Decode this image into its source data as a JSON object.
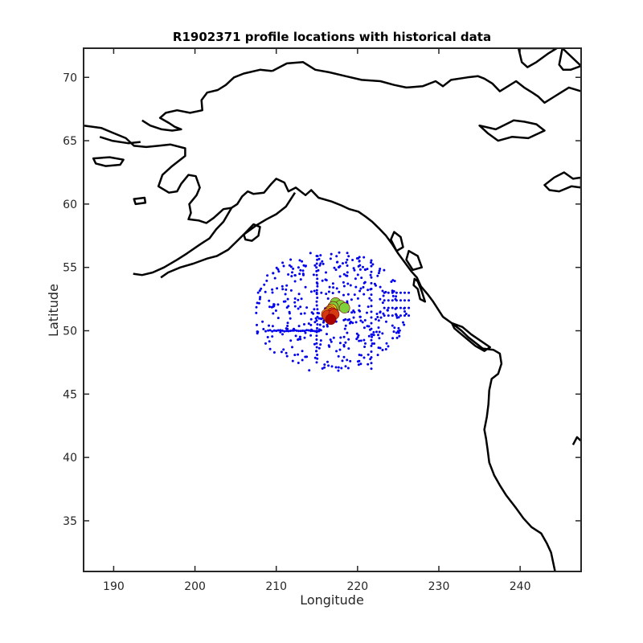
{
  "colors": {
    "coastline": "#000000",
    "historical": "#0000ee",
    "profile_gradient": [
      "#7fd13b",
      "#e8d021",
      "#f08a1c",
      "#d63a12",
      "#a80000"
    ],
    "axis": "#262626"
  },
  "chart_data": {
    "type": "scatter",
    "title": "R1902371 profile locations with historical data",
    "xlabel": "Longitude",
    "ylabel": "Latitude",
    "xlim": [
      186.3,
      247.5
    ],
    "ylim": [
      31.0,
      72.3
    ],
    "xticks": [
      190,
      200,
      210,
      220,
      230,
      240
    ],
    "yticks": [
      35,
      40,
      45,
      50,
      55,
      60,
      65,
      70
    ],
    "grid": false,
    "legend": "none",
    "historical_pattern": {
      "center": [
        216.5,
        51.5
      ],
      "lon_range": [
        207.5,
        226.5
      ],
      "lat_range": [
        46.8,
        56.5
      ],
      "cross_lon": 215.0,
      "cross_lat": 50.0,
      "point_count": 420
    },
    "profiles": [
      {
        "lon": 217.3,
        "lat": 52.2
      },
      {
        "lon": 217.9,
        "lat": 52.0
      },
      {
        "lon": 218.4,
        "lat": 51.8
      },
      {
        "lon": 217.0,
        "lat": 51.9
      },
      {
        "lon": 216.8,
        "lat": 51.7
      },
      {
        "lon": 216.6,
        "lat": 51.6
      },
      {
        "lon": 216.5,
        "lat": 51.5
      },
      {
        "lon": 216.4,
        "lat": 51.4
      },
      {
        "lon": 216.6,
        "lat": 51.2
      },
      {
        "lon": 216.8,
        "lat": 51.1
      },
      {
        "lon": 216.2,
        "lat": 51.3
      },
      {
        "lon": 216.5,
        "lat": 51.0
      },
      {
        "lon": 216.9,
        "lat": 51.4
      },
      {
        "lon": 216.3,
        "lat": 51.2
      },
      {
        "lon": 217.1,
        "lat": 51.3
      },
      {
        "lon": 216.7,
        "lat": 50.9
      }
    ],
    "coastlines": [
      {
        "name": "alaska-yukon-mainland",
        "closed": false,
        "points": [
          [
            186.3,
            66.2
          ],
          [
            188.5,
            66.0
          ],
          [
            190.0,
            65.6
          ],
          [
            191.5,
            65.2
          ],
          [
            192.5,
            64.6
          ],
          [
            194.0,
            64.5
          ],
          [
            195.5,
            64.6
          ],
          [
            197.0,
            64.7
          ],
          [
            198.8,
            64.4
          ],
          [
            198.8,
            63.8
          ],
          [
            197.2,
            63.0
          ],
          [
            196.0,
            62.3
          ],
          [
            195.5,
            61.4
          ],
          [
            196.8,
            60.9
          ],
          [
            197.8,
            61.0
          ],
          [
            198.3,
            61.6
          ],
          [
            199.2,
            62.3
          ],
          [
            200.1,
            62.2
          ],
          [
            200.6,
            61.3
          ],
          [
            200.2,
            60.7
          ],
          [
            199.3,
            60.0
          ],
          [
            199.5,
            59.3
          ],
          [
            199.2,
            58.8
          ],
          [
            200.5,
            58.7
          ],
          [
            201.4,
            58.5
          ],
          [
            202.3,
            58.9
          ],
          [
            203.5,
            59.6
          ],
          [
            204.5,
            59.7
          ],
          [
            205.2,
            60.0
          ],
          [
            205.8,
            60.6
          ],
          [
            206.5,
            61.0
          ],
          [
            207.2,
            60.8
          ],
          [
            208.5,
            60.9
          ],
          [
            209.4,
            61.6
          ],
          [
            210.0,
            62.0
          ],
          [
            211.0,
            61.7
          ],
          [
            211.5,
            61.0
          ],
          [
            212.4,
            61.3
          ],
          [
            213.6,
            60.7
          ],
          [
            214.3,
            61.1
          ],
          [
            215.2,
            60.5
          ],
          [
            216.8,
            60.2
          ],
          [
            218.0,
            59.9
          ],
          [
            219.0,
            59.6
          ],
          [
            220.1,
            59.4
          ],
          [
            221.0,
            59.0
          ],
          [
            221.8,
            58.6
          ],
          [
            222.6,
            58.1
          ],
          [
            223.5,
            57.5
          ],
          [
            224.3,
            56.8
          ],
          [
            225.0,
            56.1
          ],
          [
            225.8,
            55.4
          ],
          [
            226.6,
            54.7
          ],
          [
            227.3,
            54.2
          ],
          [
            227.8,
            53.5
          ],
          [
            228.6,
            52.9
          ],
          [
            229.3,
            52.3
          ],
          [
            230.0,
            51.6
          ],
          [
            230.5,
            51.1
          ],
          [
            231.6,
            50.6
          ],
          [
            232.8,
            50.0
          ],
          [
            233.6,
            49.5
          ],
          [
            235.4,
            48.6
          ],
          [
            236.7,
            48.5
          ],
          [
            237.5,
            48.2
          ],
          [
            237.7,
            47.4
          ],
          [
            237.3,
            46.6
          ],
          [
            236.5,
            46.2
          ],
          [
            236.2,
            45.3
          ],
          [
            236.1,
            44.2
          ],
          [
            235.9,
            43.2
          ],
          [
            235.6,
            42.2
          ],
          [
            235.8,
            41.5
          ],
          [
            236.0,
            40.6
          ],
          [
            236.2,
            39.6
          ],
          [
            236.8,
            38.6
          ],
          [
            237.5,
            37.8
          ],
          [
            238.3,
            37.0
          ],
          [
            239.5,
            36.0
          ],
          [
            240.4,
            35.2
          ],
          [
            241.4,
            34.5
          ],
          [
            242.6,
            34.0
          ],
          [
            243.3,
            33.2
          ],
          [
            243.8,
            32.5
          ],
          [
            244.3,
            31.0
          ]
        ]
      },
      {
        "name": "north-shore",
        "closed": false,
        "points": [
          [
            209.5,
            70.5
          ],
          [
            211.3,
            71.1
          ],
          [
            213.3,
            71.2
          ],
          [
            214.8,
            70.6
          ],
          [
            216.5,
            70.4
          ],
          [
            218.5,
            70.1
          ],
          [
            220.5,
            69.8
          ],
          [
            222.8,
            69.7
          ],
          [
            224.5,
            69.4
          ],
          [
            226.0,
            69.2
          ],
          [
            228.0,
            69.3
          ],
          [
            229.6,
            69.7
          ],
          [
            230.5,
            69.3
          ],
          [
            231.5,
            69.8
          ],
          [
            233.5,
            70.0
          ],
          [
            234.8,
            70.1
          ],
          [
            235.6,
            69.9
          ],
          [
            236.6,
            69.5
          ],
          [
            237.5,
            68.9
          ],
          [
            238.5,
            69.3
          ],
          [
            239.5,
            69.7
          ],
          [
            240.5,
            69.2
          ],
          [
            241.5,
            68.8
          ],
          [
            242.2,
            68.5
          ],
          [
            243.0,
            68.0
          ],
          [
            244.0,
            68.4
          ],
          [
            245.0,
            68.8
          ],
          [
            246.0,
            69.2
          ],
          [
            247.5,
            68.9
          ]
        ]
      },
      {
        "name": "west-alaska-coast",
        "closed": false,
        "points": [
          [
            209.5,
            70.5
          ],
          [
            208.0,
            70.6
          ],
          [
            206.0,
            70.3
          ],
          [
            204.8,
            70.0
          ],
          [
            203.8,
            69.4
          ],
          [
            202.8,
            69.0
          ],
          [
            201.5,
            68.8
          ],
          [
            200.8,
            68.2
          ],
          [
            200.9,
            67.4
          ],
          [
            199.4,
            67.2
          ],
          [
            197.8,
            67.4
          ],
          [
            196.4,
            67.2
          ],
          [
            195.7,
            66.8
          ],
          [
            196.8,
            66.4
          ],
          [
            197.5,
            66.1
          ],
          [
            198.3,
            65.9
          ],
          [
            197.2,
            65.8
          ],
          [
            195.9,
            65.9
          ],
          [
            194.5,
            66.2
          ],
          [
            193.5,
            66.6
          ]
        ]
      },
      {
        "name": "alaska-peninsula",
        "closed": false,
        "points": [
          [
            204.5,
            59.7
          ],
          [
            203.5,
            58.6
          ],
          [
            202.6,
            58.0
          ],
          [
            201.8,
            57.3
          ],
          [
            200.6,
            56.8
          ],
          [
            199.0,
            56.1
          ],
          [
            197.8,
            55.6
          ],
          [
            196.2,
            55.0
          ],
          [
            194.8,
            54.6
          ],
          [
            193.5,
            54.4
          ],
          [
            192.4,
            54.5
          ]
        ]
      },
      {
        "name": "south-peninsula",
        "closed": false,
        "points": [
          [
            212.3,
            60.9
          ],
          [
            211.2,
            59.8
          ],
          [
            210.0,
            59.2
          ],
          [
            208.8,
            58.8
          ],
          [
            207.5,
            58.3
          ],
          [
            206.0,
            57.6
          ],
          [
            205.2,
            57.1
          ],
          [
            204.1,
            56.4
          ],
          [
            202.7,
            55.9
          ],
          [
            201.5,
            55.7
          ],
          [
            199.8,
            55.3
          ],
          [
            198.2,
            55.0
          ],
          [
            196.7,
            54.6
          ],
          [
            195.8,
            54.2
          ]
        ]
      },
      {
        "name": "kodiak",
        "closed": true,
        "points": [
          [
            206.0,
            57.6
          ],
          [
            207.2,
            58.4
          ],
          [
            208.0,
            58.2
          ],
          [
            207.8,
            57.5
          ],
          [
            207.0,
            57.1
          ],
          [
            206.2,
            57.2
          ]
        ]
      },
      {
        "name": "nunivak",
        "closed": true,
        "points": [
          [
            192.5,
            60.4
          ],
          [
            193.8,
            60.5
          ],
          [
            193.9,
            60.1
          ],
          [
            192.7,
            60.0
          ]
        ]
      },
      {
        "name": "st-lawrence",
        "closed": true,
        "points": [
          [
            187.5,
            63.6
          ],
          [
            189.5,
            63.7
          ],
          [
            191.2,
            63.5
          ],
          [
            190.8,
            63.1
          ],
          [
            189.0,
            63.0
          ],
          [
            187.8,
            63.2
          ]
        ]
      },
      {
        "name": "seward-peninsula-bay",
        "closed": false,
        "points": [
          [
            188.3,
            65.3
          ],
          [
            189.8,
            65.0
          ],
          [
            191.8,
            64.8
          ],
          [
            193.3,
            64.9
          ]
        ]
      },
      {
        "name": "banks-island",
        "closed": true,
        "points": [
          [
            239.8,
            72.3
          ],
          [
            240.2,
            71.2
          ],
          [
            240.9,
            70.8
          ],
          [
            242.0,
            71.2
          ],
          [
            243.5,
            71.9
          ],
          [
            244.5,
            72.3
          ]
        ]
      },
      {
        "name": "victoria-island",
        "closed": true,
        "points": [
          [
            245.2,
            72.3
          ],
          [
            244.8,
            71.0
          ],
          [
            245.3,
            70.6
          ],
          [
            246.2,
            70.6
          ],
          [
            247.5,
            70.9
          ]
        ]
      },
      {
        "name": "great-bear-lake",
        "closed": true,
        "points": [
          [
            235.0,
            66.2
          ],
          [
            237.0,
            65.9
          ],
          [
            239.2,
            66.6
          ],
          [
            240.5,
            66.5
          ],
          [
            242.0,
            66.3
          ],
          [
            243.0,
            65.8
          ],
          [
            241.0,
            65.2
          ],
          [
            239.0,
            65.3
          ],
          [
            237.3,
            65.0
          ],
          [
            236.0,
            65.6
          ]
        ]
      },
      {
        "name": "great-slave-lake",
        "closed": true,
        "points": [
          [
            243.0,
            61.5
          ],
          [
            244.2,
            62.1
          ],
          [
            245.4,
            62.5
          ],
          [
            246.5,
            62.0
          ],
          [
            247.5,
            62.1
          ],
          [
            247.5,
            61.3
          ],
          [
            246.3,
            61.4
          ],
          [
            244.8,
            61.0
          ],
          [
            243.6,
            61.1
          ]
        ]
      },
      {
        "name": "haida-gwaii",
        "closed": true,
        "points": [
          [
            227.0,
            54.1
          ],
          [
            227.4,
            53.9
          ],
          [
            227.9,
            53.1
          ],
          [
            228.3,
            52.3
          ],
          [
            227.7,
            52.5
          ],
          [
            227.4,
            53.3
          ],
          [
            226.9,
            53.6
          ]
        ]
      },
      {
        "name": "vancouver-island",
        "closed": true,
        "points": [
          [
            231.6,
            50.6
          ],
          [
            232.9,
            50.3
          ],
          [
            234.0,
            49.7
          ],
          [
            236.3,
            48.7
          ],
          [
            235.6,
            48.4
          ],
          [
            234.5,
            48.8
          ],
          [
            233.0,
            49.6
          ],
          [
            231.9,
            50.2
          ]
        ]
      },
      {
        "name": "prince-of-wales",
        "closed": true,
        "points": [
          [
            226.3,
            56.3
          ],
          [
            227.4,
            55.9
          ],
          [
            227.9,
            55.0
          ],
          [
            226.8,
            54.8
          ],
          [
            226.0,
            55.6
          ]
        ]
      },
      {
        "name": "baranof",
        "closed": true,
        "points": [
          [
            224.5,
            57.8
          ],
          [
            225.3,
            57.4
          ],
          [
            225.6,
            56.6
          ],
          [
            224.8,
            56.3
          ],
          [
            224.1,
            57.2
          ]
        ]
      },
      {
        "name": "hudson-edge",
        "closed": false,
        "points": [
          [
            246.5,
            41.0
          ],
          [
            247.0,
            41.6
          ],
          [
            247.5,
            41.3
          ]
        ]
      }
    ]
  }
}
